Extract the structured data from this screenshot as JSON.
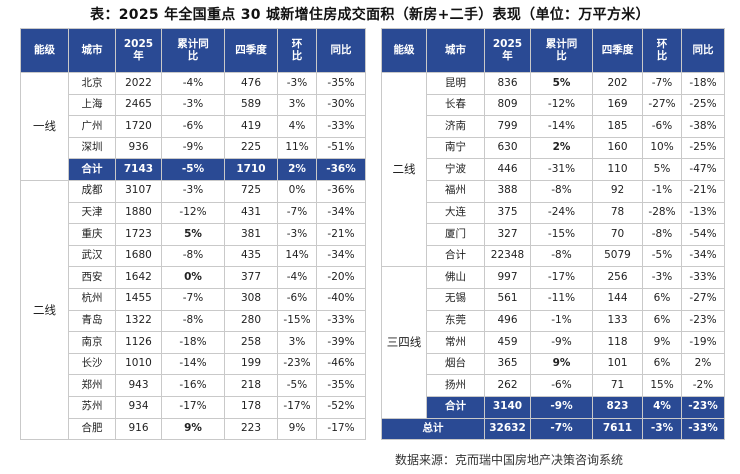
{
  "title": "表：2025 年全国重点 30 城新增住房成交面积（新房+二手）表现（单位：万平方米）",
  "headers": [
    "能级",
    "城市",
    "2025\n年",
    "累计同\n比",
    "四季度",
    "环\n比",
    "同比"
  ],
  "left": {
    "groups": [
      {
        "tier": "一线",
        "rows": [
          [
            "北京",
            "2022",
            "-4%",
            "476",
            "-3%",
            "-35%"
          ],
          [
            "上海",
            "2465",
            "-3%",
            "589",
            "3%",
            "-30%"
          ],
          [
            "广州",
            "1720",
            "-6%",
            "419",
            "4%",
            "-33%"
          ],
          [
            "深圳",
            "936",
            "-9%",
            "225",
            "11%",
            "-51%"
          ]
        ],
        "subtotal": [
          "合计",
          "7143",
          "-5%",
          "1710",
          "2%",
          "-36%"
        ]
      },
      {
        "tier": "二线",
        "rows": [
          [
            "成都",
            "3107",
            "-3%",
            "725",
            "0%",
            "-36%"
          ],
          [
            "天津",
            "1880",
            "-12%",
            "431",
            "-7%",
            "-34%"
          ],
          [
            "重庆",
            "1723",
            "5%",
            "381",
            "-3%",
            "-21%"
          ],
          [
            "武汉",
            "1680",
            "-8%",
            "435",
            "14%",
            "-34%"
          ],
          [
            "西安",
            "1642",
            "0%",
            "377",
            "-4%",
            "-20%"
          ],
          [
            "杭州",
            "1455",
            "-7%",
            "308",
            "-6%",
            "-40%"
          ],
          [
            "青岛",
            "1322",
            "-8%",
            "280",
            "-15%",
            "-33%"
          ],
          [
            "南京",
            "1126",
            "-18%",
            "258",
            "3%",
            "-39%"
          ],
          [
            "长沙",
            "1010",
            "-14%",
            "199",
            "-23%",
            "-46%"
          ],
          [
            "郑州",
            "943",
            "-16%",
            "218",
            "-5%",
            "-35%"
          ],
          [
            "苏州",
            "934",
            "-17%",
            "178",
            "-17%",
            "-52%"
          ],
          [
            "合肥",
            "916",
            "9%",
            "223",
            "9%",
            "-17%"
          ]
        ]
      }
    ]
  },
  "right": {
    "groups": [
      {
        "tier": "二线",
        "rows": [
          [
            "昆明",
            "836",
            "5%",
            "202",
            "-7%",
            "-18%"
          ],
          [
            "长春",
            "809",
            "-12%",
            "169",
            "-27%",
            "-25%"
          ],
          [
            "济南",
            "799",
            "-14%",
            "185",
            "-6%",
            "-38%"
          ],
          [
            "南宁",
            "630",
            "2%",
            "160",
            "10%",
            "-25%"
          ],
          [
            "宁波",
            "446",
            "-31%",
            "110",
            "5%",
            "-47%"
          ],
          [
            "福州",
            "388",
            "-8%",
            "92",
            "-1%",
            "-21%"
          ],
          [
            "大连",
            "375",
            "-24%",
            "78",
            "-28%",
            "-13%"
          ],
          [
            "厦门",
            "327",
            "-15%",
            "70",
            "-8%",
            "-54%"
          ],
          [
            "合计",
            "22348",
            "-8%",
            "5079",
            "-5%",
            "-34%"
          ]
        ]
      },
      {
        "tier": "三四线",
        "rows": [
          [
            "佛山",
            "997",
            "-17%",
            "256",
            "-3%",
            "-33%"
          ],
          [
            "无锡",
            "561",
            "-11%",
            "144",
            "6%",
            "-27%"
          ],
          [
            "东莞",
            "496",
            "-1%",
            "133",
            "6%",
            "-23%"
          ],
          [
            "常州",
            "459",
            "-9%",
            "118",
            "9%",
            "-19%"
          ],
          [
            "烟台",
            "365",
            "9%",
            "101",
            "6%",
            "2%"
          ],
          [
            "扬州",
            "262",
            "-6%",
            "71",
            "15%",
            "-2%"
          ]
        ],
        "subtotal": [
          "合计",
          "3140",
          "-9%",
          "823",
          "4%",
          "-23%"
        ]
      }
    ],
    "total": [
      "总计",
      "32632",
      "-7%",
      "7611",
      "-3%",
      "-33%"
    ]
  },
  "bold_values": [
    "5%",
    "0%",
    "9%",
    "2%"
  ],
  "source": "数据来源：克而瑞中国房地产决策咨询系统"
}
